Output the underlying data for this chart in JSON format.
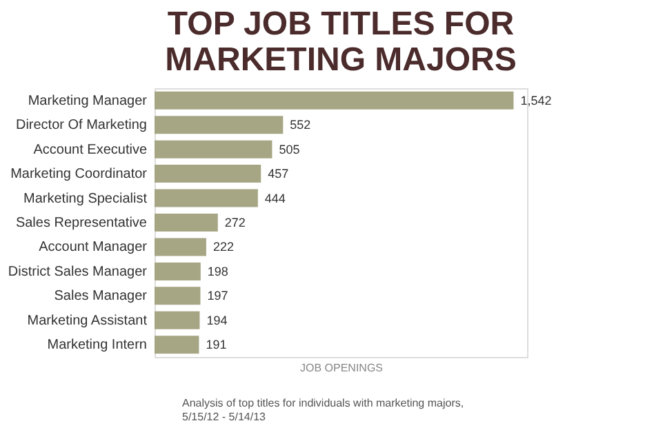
{
  "chart_data": {
    "type": "bar",
    "orientation": "horizontal",
    "title": "TOP JOB TITLES FOR\nMARKETING MAJORS",
    "xlabel": "JOB OPENINGS",
    "categories": [
      "Marketing Manager",
      "Director Of Marketing",
      "Account Executive",
      "Marketing Coordinator",
      "Marketing Specialist",
      "Sales Representative",
      "Account Manager",
      "District Sales Manager",
      "Sales Manager",
      "Marketing Assistant",
      "Marketing Intern"
    ],
    "values": [
      1542,
      552,
      505,
      457,
      444,
      272,
      222,
      198,
      197,
      194,
      191
    ],
    "color": "#a6a685",
    "value_labels": [
      "1,542",
      "552",
      "505",
      "457",
      "444",
      "272",
      "222",
      "198",
      "197",
      "194",
      "191"
    ],
    "grid": false,
    "annotations": [
      "Analysis of top titles for individuals with marketing majors,\n5/15/12 - 5/14/13"
    ]
  }
}
